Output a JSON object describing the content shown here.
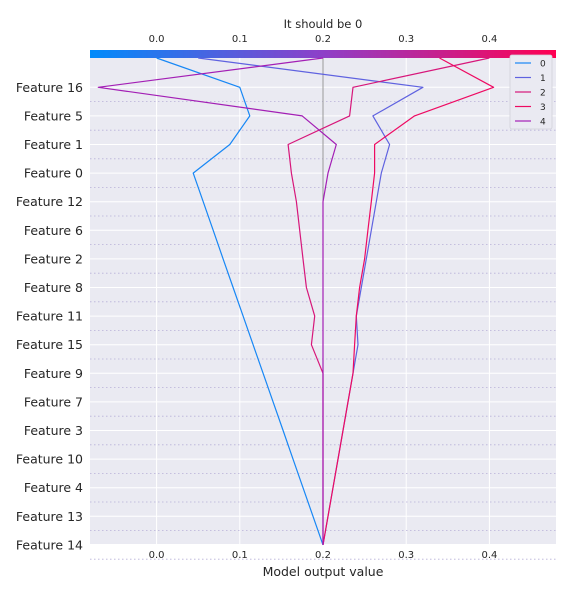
{
  "chart_data": {
    "type": "line",
    "title": "It should be 0",
    "xlabel": "Model output value",
    "ylabel": "",
    "xlim": [
      -0.08,
      0.48
    ],
    "xticks": [
      0.0,
      0.1,
      0.2,
      0.3,
      0.4
    ],
    "xtick_labels": [
      "0.0",
      "0.1",
      "0.2",
      "0.3",
      "0.4"
    ],
    "base_value": 0.2,
    "features": [
      "Feature 14",
      "Feature 13",
      "Feature 4",
      "Feature 10",
      "Feature 3",
      "Feature 7",
      "Feature 9",
      "Feature 15",
      "Feature 11",
      "Feature 8",
      "Feature 2",
      "Feature 6",
      "Feature 12",
      "Feature 0",
      "Feature 1",
      "Feature 5",
      "Feature 16"
    ],
    "grid": true,
    "legend_position": "top-right",
    "colorbar": {
      "from": "#008bfb",
      "mid": "#8e3fc8",
      "to": "#ff0052"
    },
    "series": [
      {
        "name": "0",
        "color": "#1787f5",
        "values": [
          0.2,
          0.188,
          0.176,
          0.164,
          0.152,
          0.14,
          0.128,
          0.116,
          0.104,
          0.092,
          0.08,
          0.068,
          0.056,
          0.044,
          0.088,
          0.112,
          0.1,
          0.0
        ]
      },
      {
        "name": "1",
        "color": "#5f62e0",
        "values": [
          0.2,
          0.206,
          0.212,
          0.218,
          0.224,
          0.23,
          0.236,
          0.242,
          0.24,
          0.246,
          0.252,
          0.258,
          0.264,
          0.27,
          0.28,
          0.26,
          0.32,
          0.05
        ]
      },
      {
        "name": "2",
        "color": "#d7167a",
        "values": [
          0.2,
          0.2,
          0.2,
          0.2,
          0.2,
          0.2,
          0.2,
          0.186,
          0.19,
          0.18,
          0.176,
          0.172,
          0.168,
          0.162,
          0.158,
          0.232,
          0.236,
          0.4
        ]
      },
      {
        "name": "3",
        "color": "#ee0a62",
        "values": [
          0.2,
          0.206,
          0.212,
          0.218,
          0.224,
          0.23,
          0.236,
          0.238,
          0.24,
          0.244,
          0.25,
          0.254,
          0.258,
          0.262,
          0.262,
          0.31,
          0.405,
          0.34
        ]
      },
      {
        "name": "4",
        "color": "#a31fb5",
        "values": [
          0.2,
          0.2,
          0.2,
          0.2,
          0.2,
          0.2,
          0.2,
          0.2,
          0.2,
          0.2,
          0.2,
          0.2,
          0.2,
          0.206,
          0.216,
          0.175,
          -0.07,
          0.2
        ]
      }
    ]
  }
}
